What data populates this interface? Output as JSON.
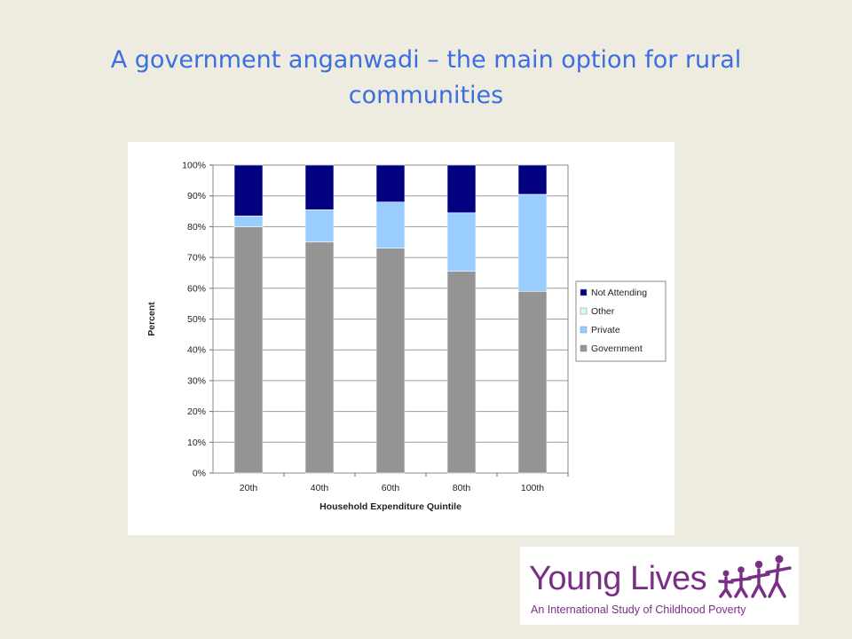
{
  "slide": {
    "title_line1": "A government anganwadi – the main option for rural",
    "title_line2": "communities"
  },
  "chart_data": {
    "type": "bar",
    "stacked": true,
    "title": "",
    "xlabel": "Household Expenditure Quintile",
    "ylabel": "Percent",
    "categories": [
      "20th",
      "40th",
      "60th",
      "80th",
      "100th"
    ],
    "ylim": [
      0,
      100
    ],
    "yticks": [
      "0%",
      "10%",
      "20%",
      "30%",
      "40%",
      "50%",
      "60%",
      "70%",
      "80%",
      "90%",
      "100%"
    ],
    "grid": true,
    "legend_position": "right",
    "series": [
      {
        "name": "Government",
        "color": "#949494",
        "values": [
          80,
          75,
          73,
          65.5,
          59
        ]
      },
      {
        "name": "Private",
        "color": "#99ccff",
        "values": [
          3.5,
          10.5,
          15,
          19,
          31.5
        ]
      },
      {
        "name": "Other",
        "color": "#ccffff",
        "values": [
          0,
          0,
          0,
          0,
          0
        ]
      },
      {
        "name": "Not Attending",
        "color": "#000080",
        "values": [
          16.5,
          14.5,
          12,
          15.5,
          9.5
        ]
      }
    ],
    "legend_order": [
      "Not Attending",
      "Other",
      "Private",
      "Government"
    ]
  },
  "logo": {
    "name": "Young Lives",
    "tagline": "An International Study of Childhood Poverty",
    "color": "#7a2f86"
  }
}
